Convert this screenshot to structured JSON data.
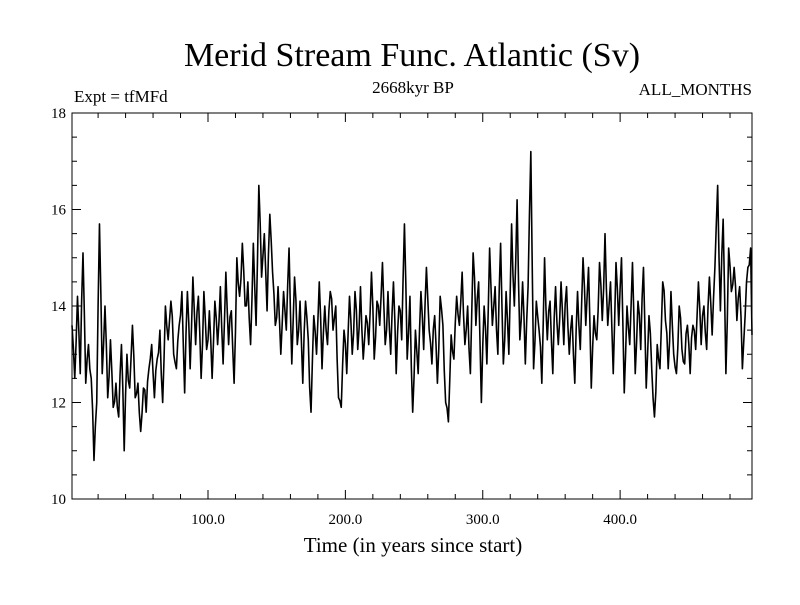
{
  "chart_data": {
    "type": "line",
    "title": "Merid Stream Func. Atlantic (Sv)",
    "subtitle_left": "Expt = tfMFd",
    "subtitle_center": "2668kyr BP",
    "subtitle_right": "ALL_MONTHS",
    "xlabel": "Time (in years since start)",
    "ylabel": "",
    "xlim": [
      1,
      496
    ],
    "ylim": [
      10,
      18
    ],
    "x_ticks": [
      100,
      200,
      300,
      400
    ],
    "x_tick_labels": [
      "100.0",
      "200.0",
      "300.0",
      "400.0"
    ],
    "y_ticks": [
      10,
      12,
      14,
      16,
      18
    ],
    "y_tick_labels": [
      "10",
      "12",
      "14",
      "16",
      "18"
    ],
    "grid": false,
    "series": [
      {
        "name": "Merid Stream Func. Atlantic",
        "x_start": 1,
        "x_step": 1,
        "keypoints": [
          [
            1,
            13.6
          ],
          [
            3,
            12.5
          ],
          [
            5,
            14.2
          ],
          [
            7,
            12.6
          ],
          [
            9,
            15.1
          ],
          [
            11,
            12.4
          ],
          [
            13,
            13.2
          ],
          [
            15,
            12.5
          ],
          [
            17,
            10.8
          ],
          [
            19,
            12.0
          ],
          [
            21,
            15.7
          ],
          [
            23,
            12.6
          ],
          [
            25,
            14.0
          ],
          [
            27,
            12.1
          ],
          [
            29,
            13.3
          ],
          [
            31,
            11.9
          ],
          [
            33,
            12.4
          ],
          [
            35,
            11.7
          ],
          [
            37,
            13.2
          ],
          [
            39,
            11.0
          ],
          [
            41,
            13.0
          ],
          [
            43,
            12.3
          ],
          [
            45,
            13.6
          ],
          [
            47,
            12.1
          ],
          [
            49,
            12.4
          ],
          [
            51,
            11.4
          ],
          [
            53,
            12.3
          ],
          [
            55,
            11.8
          ],
          [
            57,
            12.7
          ],
          [
            59,
            13.2
          ],
          [
            61,
            12.1
          ],
          [
            63,
            12.9
          ],
          [
            65,
            13.5
          ],
          [
            67,
            12.0
          ],
          [
            69,
            14.0
          ],
          [
            71,
            13.3
          ],
          [
            73,
            14.1
          ],
          [
            75,
            13.0
          ],
          [
            77,
            12.7
          ],
          [
            79,
            13.6
          ],
          [
            81,
            14.3
          ],
          [
            83,
            12.2
          ],
          [
            85,
            14.3
          ],
          [
            87,
            12.7
          ],
          [
            89,
            14.6
          ],
          [
            91,
            13.2
          ],
          [
            93,
            14.2
          ],
          [
            95,
            12.5
          ],
          [
            97,
            14.3
          ],
          [
            99,
            13.1
          ],
          [
            101,
            13.9
          ],
          [
            103,
            12.5
          ],
          [
            105,
            14.1
          ],
          [
            107,
            13.2
          ],
          [
            109,
            14.4
          ],
          [
            111,
            12.8
          ],
          [
            113,
            14.7
          ],
          [
            115,
            13.2
          ],
          [
            117,
            13.9
          ],
          [
            119,
            12.4
          ],
          [
            121,
            15.0
          ],
          [
            123,
            14.2
          ],
          [
            125,
            15.3
          ],
          [
            127,
            14.0
          ],
          [
            129,
            14.5
          ],
          [
            131,
            13.2
          ],
          [
            133,
            15.3
          ],
          [
            135,
            13.6
          ],
          [
            137,
            16.5
          ],
          [
            139,
            14.6
          ],
          [
            141,
            15.5
          ],
          [
            143,
            13.9
          ],
          [
            145,
            15.9
          ],
          [
            147,
            14.7
          ],
          [
            149,
            13.6
          ],
          [
            151,
            14.4
          ],
          [
            153,
            13.0
          ],
          [
            155,
            14.3
          ],
          [
            157,
            13.5
          ],
          [
            159,
            15.2
          ],
          [
            161,
            12.8
          ],
          [
            163,
            14.6
          ],
          [
            165,
            13.2
          ],
          [
            167,
            14.1
          ],
          [
            169,
            12.4
          ],
          [
            171,
            14.1
          ],
          [
            173,
            13.3
          ],
          [
            175,
            11.8
          ],
          [
            177,
            13.8
          ],
          [
            179,
            13.0
          ],
          [
            181,
            14.5
          ],
          [
            183,
            12.7
          ],
          [
            185,
            14.0
          ],
          [
            187,
            13.2
          ],
          [
            189,
            14.3
          ],
          [
            191,
            13.5
          ],
          [
            193,
            14.0
          ],
          [
            195,
            12.1
          ],
          [
            197,
            11.9
          ],
          [
            199,
            13.5
          ],
          [
            201,
            12.6
          ],
          [
            203,
            14.2
          ],
          [
            205,
            13.0
          ],
          [
            207,
            14.3
          ],
          [
            209,
            13.1
          ],
          [
            211,
            14.4
          ],
          [
            213,
            12.9
          ],
          [
            215,
            13.8
          ],
          [
            217,
            13.2
          ],
          [
            219,
            14.7
          ],
          [
            221,
            12.9
          ],
          [
            223,
            14.1
          ],
          [
            225,
            13.6
          ],
          [
            227,
            14.9
          ],
          [
            229,
            13.2
          ],
          [
            231,
            14.3
          ],
          [
            233,
            13.0
          ],
          [
            235,
            14.5
          ],
          [
            237,
            12.6
          ],
          [
            239,
            14.0
          ],
          [
            241,
            13.3
          ],
          [
            243,
            15.7
          ],
          [
            245,
            12.9
          ],
          [
            247,
            14.2
          ],
          [
            249,
            11.8
          ],
          [
            251,
            13.5
          ],
          [
            253,
            12.6
          ],
          [
            255,
            14.3
          ],
          [
            257,
            13.1
          ],
          [
            259,
            14.8
          ],
          [
            261,
            13.5
          ],
          [
            263,
            12.8
          ],
          [
            265,
            13.8
          ],
          [
            267,
            12.4
          ],
          [
            269,
            14.2
          ],
          [
            271,
            13.6
          ],
          [
            273,
            12.0
          ],
          [
            275,
            11.6
          ],
          [
            277,
            13.4
          ],
          [
            279,
            12.9
          ],
          [
            281,
            14.2
          ],
          [
            283,
            13.6
          ],
          [
            285,
            14.7
          ],
          [
            287,
            13.2
          ],
          [
            289,
            14.0
          ],
          [
            291,
            12.6
          ],
          [
            293,
            15.1
          ],
          [
            295,
            13.6
          ],
          [
            297,
            14.5
          ],
          [
            299,
            12.0
          ],
          [
            301,
            14.0
          ],
          [
            303,
            12.8
          ],
          [
            305,
            15.2
          ],
          [
            307,
            13.6
          ],
          [
            309,
            14.4
          ],
          [
            311,
            13.0
          ],
          [
            313,
            15.3
          ],
          [
            315,
            12.8
          ],
          [
            317,
            14.3
          ],
          [
            319,
            13.0
          ],
          [
            321,
            15.7
          ],
          [
            323,
            14.0
          ],
          [
            325,
            16.2
          ],
          [
            327,
            13.3
          ],
          [
            329,
            14.5
          ],
          [
            331,
            12.8
          ],
          [
            333,
            14.4
          ],
          [
            335,
            17.2
          ],
          [
            337,
            12.7
          ],
          [
            339,
            14.1
          ],
          [
            341,
            13.5
          ],
          [
            343,
            12.4
          ],
          [
            345,
            15.0
          ],
          [
            347,
            13.3
          ],
          [
            349,
            14.1
          ],
          [
            351,
            12.6
          ],
          [
            353,
            14.4
          ],
          [
            355,
            13.2
          ],
          [
            357,
            14.5
          ],
          [
            359,
            13.2
          ],
          [
            361,
            14.4
          ],
          [
            363,
            13.0
          ],
          [
            365,
            13.8
          ],
          [
            367,
            12.4
          ],
          [
            369,
            14.3
          ],
          [
            371,
            13.1
          ],
          [
            373,
            15.0
          ],
          [
            375,
            13.6
          ],
          [
            377,
            14.8
          ],
          [
            379,
            12.3
          ],
          [
            381,
            13.8
          ],
          [
            383,
            13.3
          ],
          [
            385,
            14.9
          ],
          [
            387,
            13.7
          ],
          [
            389,
            15.5
          ],
          [
            391,
            13.6
          ],
          [
            393,
            14.5
          ],
          [
            395,
            12.6
          ],
          [
            397,
            14.9
          ],
          [
            399,
            13.6
          ],
          [
            401,
            15.0
          ],
          [
            403,
            12.2
          ],
          [
            405,
            14.0
          ],
          [
            407,
            13.2
          ],
          [
            409,
            14.9
          ],
          [
            411,
            12.6
          ],
          [
            413,
            14.1
          ],
          [
            415,
            13.1
          ],
          [
            417,
            14.8
          ],
          [
            419,
            12.3
          ],
          [
            421,
            13.8
          ],
          [
            423,
            12.7
          ],
          [
            425,
            11.7
          ],
          [
            427,
            13.2
          ],
          [
            429,
            12.7
          ],
          [
            431,
            14.5
          ],
          [
            433,
            13.7
          ],
          [
            435,
            12.7
          ],
          [
            437,
            14.3
          ],
          [
            439,
            13.0
          ],
          [
            441,
            12.6
          ],
          [
            443,
            14.0
          ],
          [
            445,
            13.1
          ],
          [
            447,
            12.8
          ],
          [
            449,
            13.6
          ],
          [
            451,
            12.6
          ],
          [
            453,
            13.6
          ],
          [
            455,
            13.1
          ],
          [
            457,
            14.5
          ],
          [
            459,
            13.2
          ],
          [
            461,
            14.0
          ],
          [
            463,
            13.1
          ],
          [
            465,
            14.6
          ],
          [
            467,
            13.4
          ],
          [
            469,
            14.8
          ],
          [
            471,
            16.5
          ],
          [
            473,
            13.9
          ],
          [
            475,
            15.8
          ],
          [
            477,
            12.6
          ],
          [
            479,
            15.2
          ],
          [
            481,
            14.3
          ],
          [
            483,
            14.8
          ],
          [
            485,
            13.7
          ],
          [
            487,
            14.4
          ],
          [
            489,
            12.7
          ],
          [
            491,
            13.8
          ],
          [
            493,
            14.8
          ],
          [
            495,
            15.2
          ],
          [
            496,
            13.4
          ]
        ]
      }
    ]
  }
}
